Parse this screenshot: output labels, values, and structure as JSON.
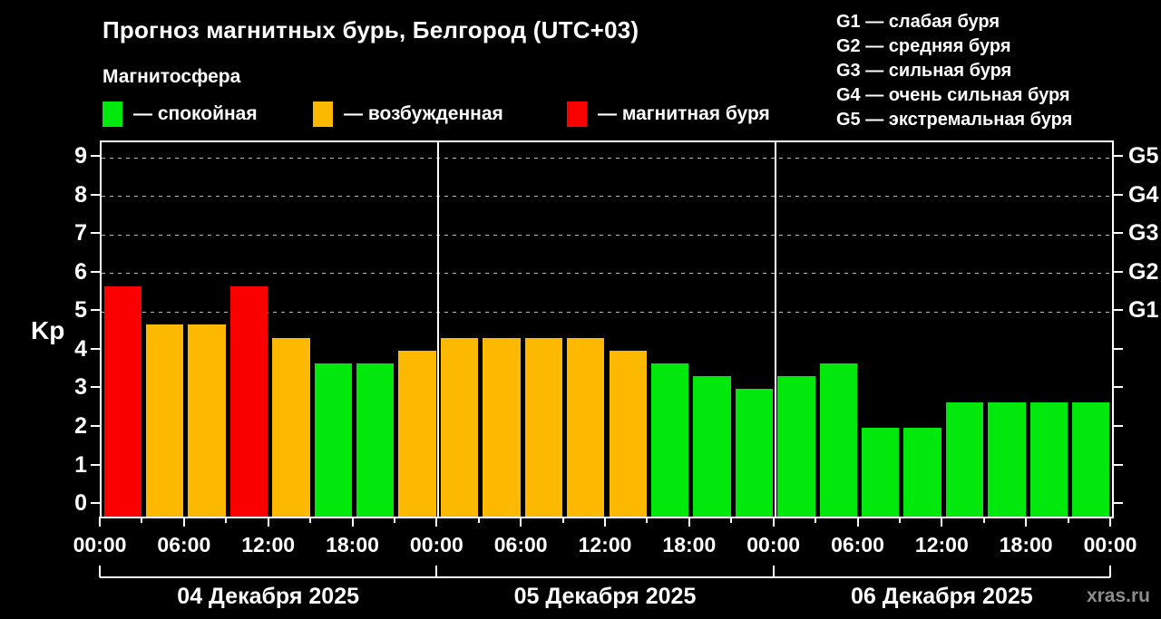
{
  "header": {
    "title": "Прогноз магнитных бурь, Белгород (UTC+03)",
    "subtitle": "Магнитосфера",
    "legend": [
      {
        "level": "quiet",
        "color": "#00e80c",
        "label": "— спокойная"
      },
      {
        "level": "excited",
        "color": "#fcb900",
        "label": "— возбужденная"
      },
      {
        "level": "storm",
        "color": "#fb0000",
        "label": "— магнитная буря"
      }
    ],
    "g_scale_legend": [
      "G1 — слабая буря",
      "G2 — средняя буря",
      "G3 — сильная буря",
      "G4 — очень сильная буря",
      "G5 — экстремальная буря"
    ]
  },
  "chart_data": {
    "type": "bar",
    "title": "Прогноз магнитных бурь, Белгород (UTC+03)",
    "ylabel": "Kp",
    "ylim": [
      -0.3,
      9.4
    ],
    "y_ticks": [
      0,
      1,
      2,
      3,
      4,
      5,
      6,
      7,
      8,
      9
    ],
    "gridlines_at": [
      5,
      6,
      7,
      8,
      9
    ],
    "grid": "dashed horizontal at storm levels only",
    "right_axis_labels": [
      {
        "label": "G1",
        "kp": 5
      },
      {
        "label": "G2",
        "kp": 6
      },
      {
        "label": "G3",
        "kp": 7
      },
      {
        "label": "G4",
        "kp": 8
      },
      {
        "label": "G5",
        "kp": 9
      }
    ],
    "x_interval_hours": 3,
    "x_tick_labels": [
      "00:00",
      "06:00",
      "12:00",
      "18:00",
      "00:00",
      "06:00",
      "12:00",
      "18:00",
      "00:00",
      "06:00",
      "12:00",
      "18:00",
      "00:00"
    ],
    "colors": {
      "quiet": "#00e80c",
      "excited": "#fcb900",
      "storm": "#fb0000"
    },
    "days": [
      {
        "date": "04 Декабря 2025",
        "values": [
          5.67,
          4.67,
          4.67,
          5.67,
          4.33,
          3.67,
          3.67,
          4.0
        ],
        "levels": [
          "storm",
          "excited",
          "excited",
          "storm",
          "excited",
          "quiet",
          "quiet",
          "excited"
        ]
      },
      {
        "date": "05 Декабря 2025",
        "values": [
          4.33,
          4.33,
          4.33,
          4.33,
          4.0,
          3.67,
          3.33,
          3.0
        ],
        "levels": [
          "excited",
          "excited",
          "excited",
          "excited",
          "excited",
          "quiet",
          "quiet",
          "quiet"
        ]
      },
      {
        "date": "06 Декабря 2025",
        "values": [
          3.33,
          3.67,
          2.0,
          2.0,
          2.67,
          2.67,
          2.67,
          2.67
        ],
        "levels": [
          "quiet",
          "quiet",
          "quiet",
          "quiet",
          "quiet",
          "quiet",
          "quiet",
          "quiet"
        ]
      }
    ]
  },
  "footer": {
    "watermark": "xras.ru"
  }
}
